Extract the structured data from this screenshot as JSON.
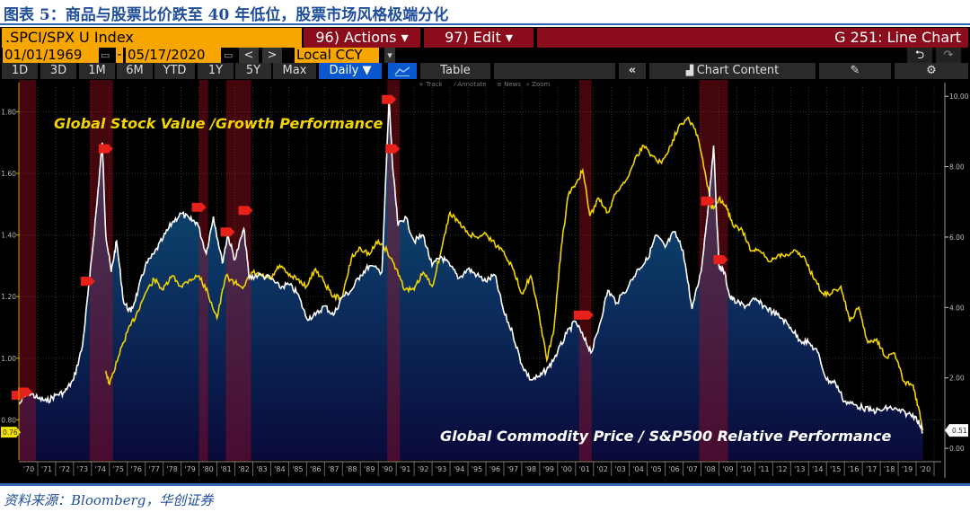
{
  "figure_title": "图表 5：商品与股票比价跌至 40 年低位，股票市场风格极端分化",
  "source": "资料来源：Bloomberg，华创证券",
  "terminal": {
    "ticker": ".SPCI/SPX U Index",
    "actions_label": "96) Actions ▾",
    "edit_label": "97) Edit ▾",
    "function_title": "G 251: Line Chart",
    "start_date": "01/01/1969",
    "date_separator": "-",
    "end_date": "05/17/2020",
    "prev_label": "<",
    "next_label": ">",
    "currency": "Local CCY",
    "dropdown_arrow": "▾",
    "undo_icon": "⮌",
    "redo_icon": "↷",
    "ranges": [
      "1D",
      "3D",
      "1M",
      "6M",
      "YTD",
      "1Y",
      "5Y",
      "Max"
    ],
    "frequency": "Daily ▼",
    "chart_type_icon": "line-chart-icon",
    "table_label": "Table",
    "collapse_label": "«",
    "chart_content_label": "Chart Content",
    "edit_icon": "pencil-icon",
    "settings_icon": "gear-icon",
    "tools": [
      "+ Track",
      "⁄ Annotate",
      "≡ News",
      "⌕ Zoom"
    ],
    "colors": {
      "orange": "#f7a600",
      "red": "#8b0d1b",
      "blue": "#0a57d0",
      "black": "#000000"
    }
  },
  "chart_data": {
    "type": "line",
    "x_tick_labels": [
      "'70",
      "'71",
      "'72",
      "'73",
      "'74",
      "'75",
      "'76",
      "'77",
      "'78",
      "'79",
      "'80",
      "'81",
      "'82",
      "'83",
      "'84",
      "'85",
      "'86",
      "'87",
      "'88",
      "'89",
      "'90",
      "'91",
      "'92",
      "'93",
      "'94",
      "'95",
      "'96",
      "'97",
      "'98",
      "'99",
      "'00",
      "'01",
      "'02",
      "'03",
      "'04",
      "'05",
      "'06",
      "'07",
      "'08",
      "'09",
      "'10",
      "'11",
      "'12",
      "'13",
      "'14",
      "'15",
      "'16",
      "'17",
      "'18",
      "'19",
      "'20"
    ],
    "xlim": [
      1969.95,
      2021.4
    ],
    "grid": true,
    "left_axis": {
      "ticks": [
        "0.80",
        "1.00",
        "1.20",
        "1.40",
        "1.60",
        "1.80"
      ],
      "ylim": [
        0.67,
        1.88
      ],
      "last_value_label": "0.76",
      "last_value_color": "#f2e200"
    },
    "right_axis": {
      "ticks": [
        "0.00",
        "2.00",
        "4.00",
        "6.00",
        "8.00",
        "10.00"
      ],
      "ylim": [
        -0.33,
        10.26
      ],
      "last_value_label": "0.51",
      "last_value_color": "#ffffff"
    },
    "recession_shading": [
      [
        1969.95,
        1970.9
      ],
      [
        1973.9,
        1975.2
      ],
      [
        1980.0,
        1980.5
      ],
      [
        1981.5,
        1982.9
      ],
      [
        1990.5,
        1991.2
      ],
      [
        2001.2,
        2001.9
      ],
      [
        2007.9,
        2009.5
      ]
    ],
    "event_markers": [
      [
        1969.95,
        0.88
      ],
      [
        1970.3,
        0.89
      ],
      [
        1973.8,
        1.25
      ],
      [
        1974.8,
        1.68
      ],
      [
        1980.0,
        1.49
      ],
      [
        1981.6,
        1.41
      ],
      [
        1982.6,
        1.48
      ],
      [
        1990.6,
        1.84
      ],
      [
        1990.8,
        1.68
      ],
      [
        2001.3,
        1.14
      ],
      [
        2001.6,
        1.14
      ],
      [
        2008.4,
        1.51
      ],
      [
        2009.1,
        1.32
      ]
    ],
    "series": [
      {
        "name": "Global Commodity Price / S&P500 Relative Performance",
        "axis": "left",
        "color": "#ffffff",
        "area_fill": true,
        "x": [
          1969.95,
          1970.5,
          1971,
          1971.5,
          1972,
          1972.5,
          1973,
          1973.5,
          1973.9,
          1974.3,
          1974.6,
          1974.8,
          1975.1,
          1975.4,
          1975.8,
          1976.2,
          1976.6,
          1977,
          1977.5,
          1978,
          1978.5,
          1979,
          1979.5,
          1979.9,
          1980.4,
          1980.8,
          1981.3,
          1981.6,
          1982,
          1982.5,
          1982.8,
          1983.3,
          1984,
          1984.5,
          1985,
          1985.5,
          1986,
          1986.5,
          1987,
          1987.5,
          1988,
          1988.5,
          1989,
          1989.5,
          1990.2,
          1990.6,
          1990.8,
          1991.1,
          1991.5,
          1992,
          1992.5,
          1993,
          1993.5,
          1994,
          1994.5,
          1995,
          1995.5,
          1996,
          1996.5,
          1997,
          1997.5,
          1998,
          1998.5,
          1999,
          1999.5,
          2000,
          2000.5,
          2001,
          2001.5,
          2001.9,
          2002.3,
          2002.8,
          2003.3,
          2004,
          2004.5,
          2005,
          2005.5,
          2006,
          2006.5,
          2007,
          2007.5,
          2008,
          2008.4,
          2008.7,
          2009,
          2009.3,
          2009.6,
          2010,
          2010.5,
          2011,
          2011.5,
          2012,
          2012.5,
          2013,
          2013.5,
          2014,
          2014.5,
          2015,
          2015.5,
          2016,
          2016.5,
          2017,
          2017.5,
          2018,
          2018.5,
          2019,
          2019.5,
          2020,
          2020.38
        ],
        "y": [
          0.85,
          0.89,
          0.87,
          0.86,
          0.88,
          0.89,
          0.93,
          1.04,
          1.26,
          1.5,
          1.7,
          1.4,
          1.28,
          1.38,
          1.18,
          1.15,
          1.22,
          1.3,
          1.34,
          1.39,
          1.44,
          1.47,
          1.45,
          1.44,
          1.34,
          1.46,
          1.31,
          1.4,
          1.32,
          1.42,
          1.26,
          1.27,
          1.26,
          1.23,
          1.24,
          1.21,
          1.13,
          1.14,
          1.17,
          1.14,
          1.2,
          1.22,
          1.27,
          1.3,
          1.28,
          1.84,
          1.62,
          1.43,
          1.46,
          1.38,
          1.4,
          1.3,
          1.33,
          1.3,
          1.26,
          1.29,
          1.27,
          1.25,
          1.27,
          1.15,
          1.08,
          0.98,
          0.93,
          0.94,
          0.97,
          1.02,
          1.08,
          1.12,
          1.06,
          1.02,
          1.1,
          1.22,
          1.18,
          1.24,
          1.29,
          1.32,
          1.4,
          1.36,
          1.41,
          1.35,
          1.16,
          1.28,
          1.49,
          1.69,
          1.3,
          1.28,
          1.2,
          1.18,
          1.17,
          1.19,
          1.17,
          1.15,
          1.13,
          1.1,
          1.06,
          1.05,
          1.02,
          0.93,
          0.92,
          0.86,
          0.85,
          0.84,
          0.83,
          0.83,
          0.84,
          0.83,
          0.82,
          0.81,
          0.76
        ]
      },
      {
        "name": "Global Stock Value /Growth Performance",
        "axis": "right",
        "color": "#f2d400",
        "area_fill": false,
        "x": [
          1974.8,
          1975.0,
          1975.5,
          1976,
          1976.5,
          1977,
          1977.5,
          1978,
          1978.5,
          1979,
          1979.5,
          1980,
          1980.5,
          1981,
          1981.5,
          1982,
          1982.5,
          1983,
          1983.5,
          1984,
          1984.5,
          1985,
          1985.5,
          1986,
          1986.5,
          1987,
          1987.5,
          1988,
          1988.5,
          1989,
          1989.5,
          1990,
          1990.5,
          1991,
          1991.5,
          1992,
          1992.5,
          1993,
          1993.5,
          1994,
          1994.5,
          1995,
          1995.5,
          1996,
          1996.5,
          1997,
          1997.5,
          1998,
          1998.5,
          1999,
          1999.4,
          1999.8,
          2000.2,
          2000.6,
          2001,
          2001.4,
          2001.8,
          2002.3,
          2002.8,
          2003.3,
          2003.8,
          2004.3,
          2004.8,
          2005.3,
          2005.8,
          2006.3,
          2006.8,
          2007.3,
          2007.8,
          2008.2,
          2008.6,
          2009,
          2009.4,
          2009.8,
          2010.3,
          2010.8,
          2011.3,
          2011.8,
          2012.3,
          2012.8,
          2013.3,
          2013.8,
          2014.3,
          2014.8,
          2015.3,
          2015.8,
          2016.3,
          2016.8,
          2017.3,
          2017.8,
          2018.3,
          2018.8,
          2019.3,
          2019.8,
          2020.1,
          2020.38
        ],
        "y": [
          2.2,
          1.8,
          2.6,
          3.3,
          3.8,
          4.4,
          4.8,
          4.5,
          4.9,
          4.6,
          4.8,
          4.9,
          4.4,
          3.7,
          4.9,
          4.7,
          4.6,
          5.0,
          4.9,
          4.8,
          5.2,
          4.9,
          4.8,
          4.6,
          5.1,
          4.7,
          4.3,
          4.3,
          5.4,
          5.7,
          5.5,
          5.9,
          5.6,
          5.1,
          4.5,
          4.5,
          5.0,
          4.6,
          5.6,
          6.7,
          6.4,
          6.1,
          6.0,
          6.1,
          5.8,
          5.6,
          5.1,
          4.4,
          4.9,
          3.7,
          2.5,
          3.4,
          5.7,
          7.2,
          7.5,
          7.9,
          6.6,
          7.1,
          6.7,
          7.3,
          7.6,
          8.2,
          8.6,
          8.3,
          8.1,
          8.6,
          9.2,
          9.4,
          8.9,
          7.9,
          6.8,
          7.1,
          6.9,
          6.3,
          6.2,
          5.6,
          5.6,
          5.3,
          5.5,
          5.5,
          5.6,
          5.4,
          4.8,
          4.4,
          4.4,
          4.6,
          3.6,
          4.0,
          3.0,
          3.1,
          2.6,
          2.7,
          1.9,
          1.8,
          1.2,
          0.51
        ]
      }
    ],
    "annotations": [
      "Global Stock Value /Growth Performance",
      "Global Commodity Price / S&P500 Relative Performance"
    ]
  }
}
